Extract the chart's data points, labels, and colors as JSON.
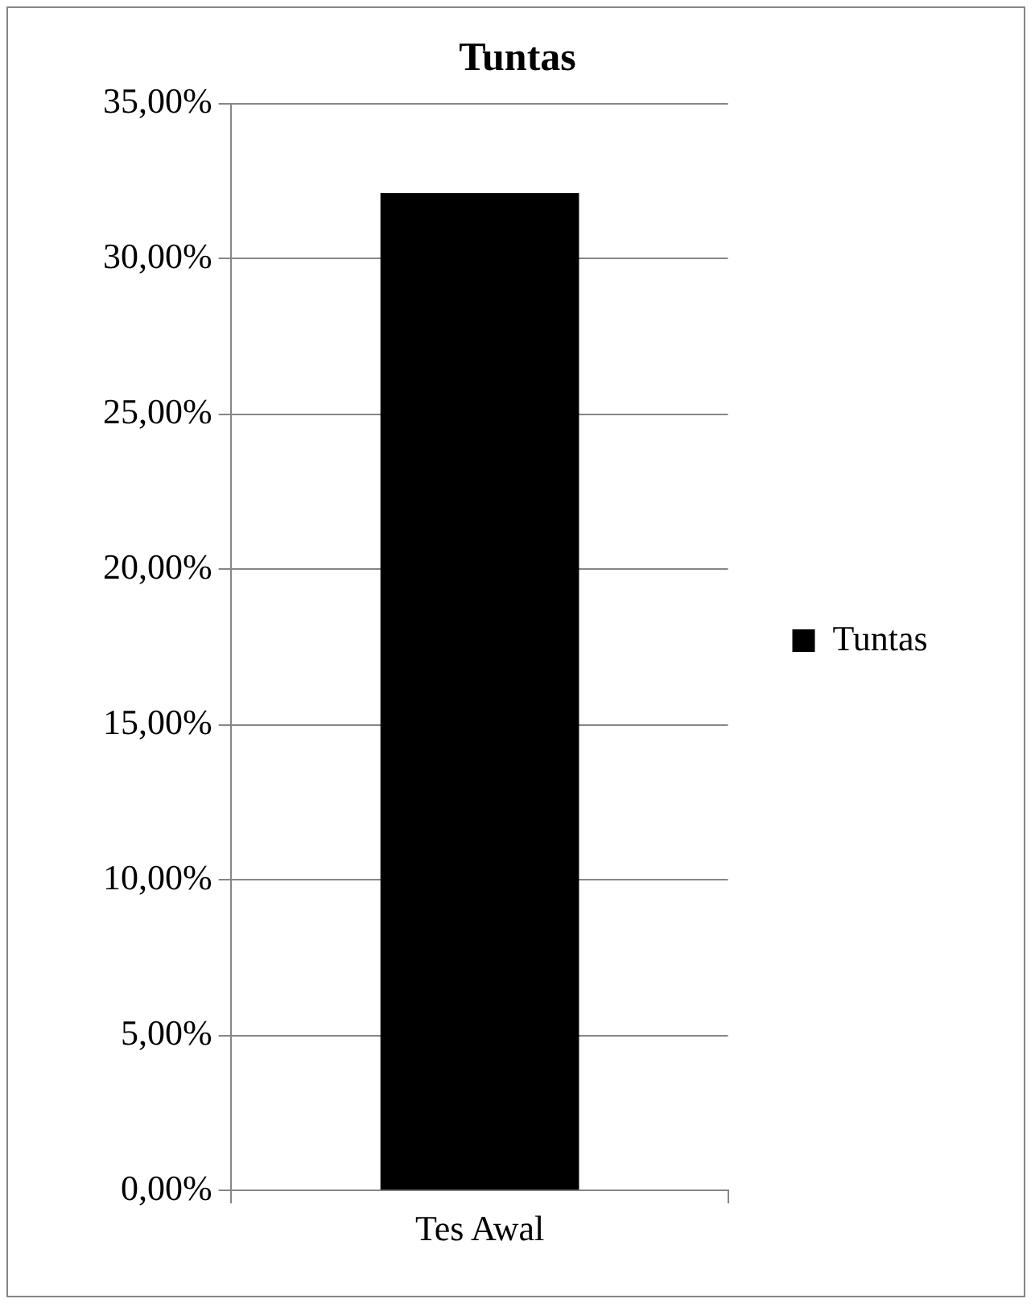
{
  "chart_data": {
    "type": "bar",
    "title": "Tuntas",
    "categories": [
      "Tes Awal"
    ],
    "series": [
      {
        "name": "Tuntas",
        "color": "#000000",
        "values": [
          32.1
        ]
      }
    ],
    "ylim": [
      0,
      35
    ],
    "yticks": [
      {
        "value": 0,
        "label": "0,00%"
      },
      {
        "value": 5,
        "label": "5,00%"
      },
      {
        "value": 10,
        "label": "10,00%"
      },
      {
        "value": 15,
        "label": "15,00%"
      },
      {
        "value": 20,
        "label": "20,00%"
      },
      {
        "value": 25,
        "label": "25,00%"
      },
      {
        "value": 30,
        "label": "30,00%"
      },
      {
        "value": 35,
        "label": "35,00%"
      }
    ],
    "grid": "y",
    "legend": "right"
  }
}
